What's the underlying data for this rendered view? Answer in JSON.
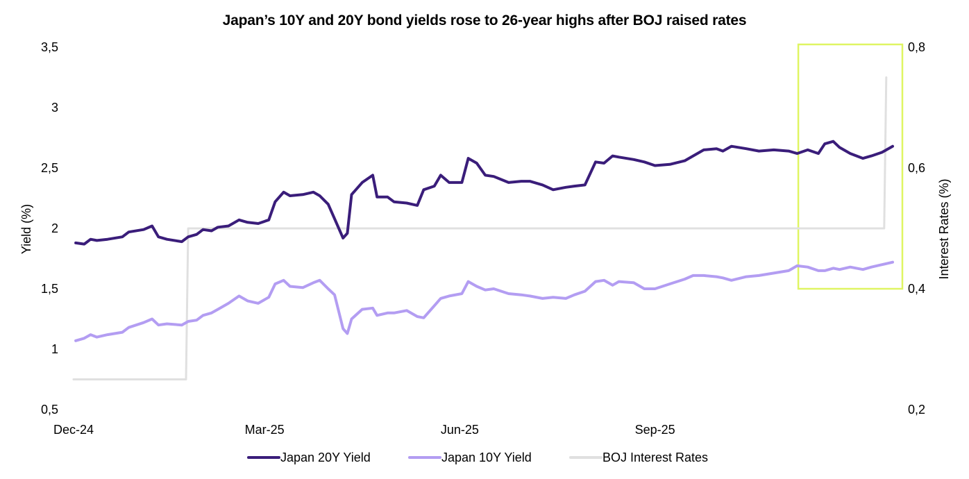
{
  "chart_data": {
    "type": "line",
    "title": "Japan’s 10Y and 20Y bond yields rose to 26-year highs after BOJ raised rates",
    "ylabel": "Yield (%)",
    "y2label": "Interest Rates (%)",
    "ylim": [
      0.5,
      3.5
    ],
    "yticks": [
      0.5,
      1,
      1.5,
      2,
      2.5,
      3,
      3.5
    ],
    "yticklabels": [
      "0,5",
      "1",
      "1,5",
      "2",
      "2,5",
      "3",
      "3,5"
    ],
    "y2lim": [
      0.2,
      0.8
    ],
    "y2ticks": [
      0.2,
      0.4,
      0.6,
      0.8
    ],
    "y2ticklabels": [
      "0,2",
      "0,4",
      "0,6",
      "0,8"
    ],
    "xlim": [
      "2024-12-01",
      "2025-12-22"
    ],
    "xticks": [
      "2024-12-01",
      "2025-03-01",
      "2025-06-01",
      "2025-09-01"
    ],
    "xticklabels": [
      "Dec-24",
      "Mar-25",
      "Jun-25",
      "Sep-25"
    ],
    "grid": false,
    "legend_position": "bottom",
    "highlight_box": {
      "x_start": "2025-11-01",
      "x_end": "2025-12-22",
      "y_bottom": 1.5,
      "y_top": 3.5,
      "color": "#DFF562"
    },
    "series": [
      {
        "name": "Japan 20Y Yield",
        "axis": "left",
        "color": "#3A1D7A",
        "points": [
          [
            "2024-12-02",
            1.88
          ],
          [
            "2024-12-06",
            1.87
          ],
          [
            "2024-12-09",
            1.91
          ],
          [
            "2024-12-12",
            1.9
          ],
          [
            "2024-12-17",
            1.91
          ],
          [
            "2024-12-24",
            1.93
          ],
          [
            "2024-12-27",
            1.97
          ],
          [
            "2025-01-03",
            1.99
          ],
          [
            "2025-01-07",
            2.02
          ],
          [
            "2025-01-10",
            1.93
          ],
          [
            "2025-01-14",
            1.91
          ],
          [
            "2025-01-21",
            1.89
          ],
          [
            "2025-01-24",
            1.93
          ],
          [
            "2025-01-28",
            1.95
          ],
          [
            "2025-01-31",
            1.99
          ],
          [
            "2025-02-04",
            1.98
          ],
          [
            "2025-02-07",
            2.01
          ],
          [
            "2025-02-12",
            2.02
          ],
          [
            "2025-02-17",
            2.07
          ],
          [
            "2025-02-21",
            2.05
          ],
          [
            "2025-02-26",
            2.04
          ],
          [
            "2025-03-03",
            2.07
          ],
          [
            "2025-03-06",
            2.22
          ],
          [
            "2025-03-10",
            2.3
          ],
          [
            "2025-03-13",
            2.27
          ],
          [
            "2025-03-19",
            2.28
          ],
          [
            "2025-03-24",
            2.3
          ],
          [
            "2025-03-27",
            2.27
          ],
          [
            "2025-03-31",
            2.2
          ],
          [
            "2025-04-03",
            2.08
          ],
          [
            "2025-04-07",
            1.92
          ],
          [
            "2025-04-09",
            1.96
          ],
          [
            "2025-04-11",
            2.28
          ],
          [
            "2025-04-16",
            2.38
          ],
          [
            "2025-04-21",
            2.44
          ],
          [
            "2025-04-23",
            2.26
          ],
          [
            "2025-04-28",
            2.26
          ],
          [
            "2025-05-01",
            2.22
          ],
          [
            "2025-05-07",
            2.21
          ],
          [
            "2025-05-12",
            2.19
          ],
          [
            "2025-05-15",
            2.32
          ],
          [
            "2025-05-20",
            2.35
          ],
          [
            "2025-05-23",
            2.44
          ],
          [
            "2025-05-27",
            2.38
          ],
          [
            "2025-06-02",
            2.38
          ],
          [
            "2025-06-05",
            2.58
          ],
          [
            "2025-06-09",
            2.54
          ],
          [
            "2025-06-13",
            2.44
          ],
          [
            "2025-06-17",
            2.43
          ],
          [
            "2025-06-24",
            2.38
          ],
          [
            "2025-06-30",
            2.39
          ],
          [
            "2025-07-04",
            2.39
          ],
          [
            "2025-07-10",
            2.36
          ],
          [
            "2025-07-15",
            2.32
          ],
          [
            "2025-07-21",
            2.34
          ],
          [
            "2025-07-25",
            2.35
          ],
          [
            "2025-07-30",
            2.36
          ],
          [
            "2025-08-04",
            2.55
          ],
          [
            "2025-08-08",
            2.54
          ],
          [
            "2025-08-12",
            2.6
          ],
          [
            "2025-08-15",
            2.59
          ],
          [
            "2025-08-22",
            2.57
          ],
          [
            "2025-08-27",
            2.55
          ],
          [
            "2025-09-01",
            2.52
          ],
          [
            "2025-09-08",
            2.53
          ],
          [
            "2025-09-15",
            2.56
          ],
          [
            "2025-09-19",
            2.6
          ],
          [
            "2025-09-24",
            2.65
          ],
          [
            "2025-09-30",
            2.66
          ],
          [
            "2025-10-03",
            2.64
          ],
          [
            "2025-10-07",
            2.68
          ],
          [
            "2025-10-14",
            2.66
          ],
          [
            "2025-10-20",
            2.64
          ],
          [
            "2025-10-27",
            2.65
          ],
          [
            "2025-11-03",
            2.64
          ],
          [
            "2025-11-07",
            2.62
          ],
          [
            "2025-11-12",
            2.65
          ],
          [
            "2025-11-17",
            2.62
          ],
          [
            "2025-11-20",
            2.7
          ],
          [
            "2025-11-24",
            2.72
          ],
          [
            "2025-11-27",
            2.67
          ],
          [
            "2025-12-02",
            2.62
          ],
          [
            "2025-12-08",
            2.58
          ],
          [
            "2025-12-12",
            2.6
          ],
          [
            "2025-12-17",
            2.63
          ],
          [
            "2025-12-22",
            2.68
          ]
        ]
      },
      {
        "name": "Japan 10Y Yield",
        "axis": "left",
        "color": "#B39DF2",
        "points": [
          [
            "2024-12-02",
            1.07
          ],
          [
            "2024-12-06",
            1.09
          ],
          [
            "2024-12-09",
            1.12
          ],
          [
            "2024-12-12",
            1.1
          ],
          [
            "2024-12-17",
            1.12
          ],
          [
            "2024-12-24",
            1.14
          ],
          [
            "2024-12-27",
            1.18
          ],
          [
            "2025-01-03",
            1.22
          ],
          [
            "2025-01-07",
            1.25
          ],
          [
            "2025-01-10",
            1.2
          ],
          [
            "2025-01-14",
            1.21
          ],
          [
            "2025-01-21",
            1.2
          ],
          [
            "2025-01-24",
            1.23
          ],
          [
            "2025-01-28",
            1.24
          ],
          [
            "2025-01-31",
            1.28
          ],
          [
            "2025-02-04",
            1.3
          ],
          [
            "2025-02-07",
            1.33
          ],
          [
            "2025-02-12",
            1.38
          ],
          [
            "2025-02-17",
            1.44
          ],
          [
            "2025-02-21",
            1.4
          ],
          [
            "2025-02-26",
            1.38
          ],
          [
            "2025-03-03",
            1.43
          ],
          [
            "2025-03-06",
            1.54
          ],
          [
            "2025-03-10",
            1.57
          ],
          [
            "2025-03-13",
            1.52
          ],
          [
            "2025-03-19",
            1.51
          ],
          [
            "2025-03-24",
            1.55
          ],
          [
            "2025-03-27",
            1.57
          ],
          [
            "2025-03-31",
            1.5
          ],
          [
            "2025-04-03",
            1.45
          ],
          [
            "2025-04-07",
            1.17
          ],
          [
            "2025-04-09",
            1.13
          ],
          [
            "2025-04-11",
            1.25
          ],
          [
            "2025-04-16",
            1.33
          ],
          [
            "2025-04-21",
            1.34
          ],
          [
            "2025-04-23",
            1.28
          ],
          [
            "2025-04-28",
            1.3
          ],
          [
            "2025-05-01",
            1.3
          ],
          [
            "2025-05-07",
            1.32
          ],
          [
            "2025-05-12",
            1.27
          ],
          [
            "2025-05-15",
            1.26
          ],
          [
            "2025-05-20",
            1.36
          ],
          [
            "2025-05-23",
            1.42
          ],
          [
            "2025-05-27",
            1.44
          ],
          [
            "2025-06-02",
            1.46
          ],
          [
            "2025-06-05",
            1.56
          ],
          [
            "2025-06-09",
            1.52
          ],
          [
            "2025-06-13",
            1.49
          ],
          [
            "2025-06-17",
            1.5
          ],
          [
            "2025-06-24",
            1.46
          ],
          [
            "2025-06-30",
            1.45
          ],
          [
            "2025-07-04",
            1.44
          ],
          [
            "2025-07-10",
            1.42
          ],
          [
            "2025-07-15",
            1.43
          ],
          [
            "2025-07-21",
            1.42
          ],
          [
            "2025-07-25",
            1.45
          ],
          [
            "2025-07-30",
            1.48
          ],
          [
            "2025-08-04",
            1.56
          ],
          [
            "2025-08-08",
            1.57
          ],
          [
            "2025-08-12",
            1.53
          ],
          [
            "2025-08-15",
            1.56
          ],
          [
            "2025-08-22",
            1.55
          ],
          [
            "2025-08-27",
            1.5
          ],
          [
            "2025-09-01",
            1.5
          ],
          [
            "2025-09-08",
            1.54
          ],
          [
            "2025-09-15",
            1.58
          ],
          [
            "2025-09-19",
            1.61
          ],
          [
            "2025-09-24",
            1.61
          ],
          [
            "2025-09-30",
            1.6
          ],
          [
            "2025-10-03",
            1.59
          ],
          [
            "2025-10-07",
            1.57
          ],
          [
            "2025-10-14",
            1.6
          ],
          [
            "2025-10-20",
            1.61
          ],
          [
            "2025-10-27",
            1.63
          ],
          [
            "2025-11-03",
            1.65
          ],
          [
            "2025-11-07",
            1.69
          ],
          [
            "2025-11-12",
            1.68
          ],
          [
            "2025-11-17",
            1.65
          ],
          [
            "2025-11-20",
            1.65
          ],
          [
            "2025-11-24",
            1.67
          ],
          [
            "2025-11-27",
            1.66
          ],
          [
            "2025-12-02",
            1.68
          ],
          [
            "2025-12-08",
            1.66
          ],
          [
            "2025-12-12",
            1.68
          ],
          [
            "2025-12-17",
            1.7
          ],
          [
            "2025-12-22",
            1.72
          ]
        ]
      },
      {
        "name": "BOJ Interest Rates",
        "axis": "right",
        "color": "#E0E0E0",
        "points": [
          [
            "2024-12-01",
            0.25
          ],
          [
            "2025-01-23",
            0.25
          ],
          [
            "2025-01-24",
            0.5
          ],
          [
            "2025-12-18",
            0.5
          ],
          [
            "2025-12-19",
            0.75
          ]
        ]
      }
    ]
  }
}
